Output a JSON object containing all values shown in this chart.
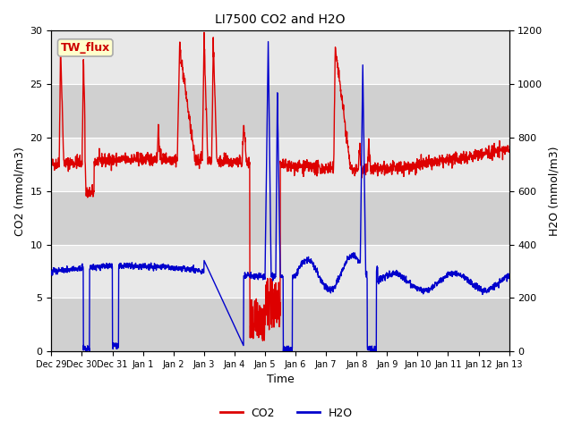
{
  "title": "LI7500 CO2 and H2O",
  "xlabel": "Time",
  "ylabel_left": "CO2 (mmol/m3)",
  "ylabel_right": "H2O (mmol/m3)",
  "annotation_text": "TW_flux",
  "annotation_bg": "#ffffcc",
  "annotation_border": "#aaaaaa",
  "annotation_text_color": "#cc0000",
  "ylim_left": [
    0,
    30
  ],
  "ylim_right": [
    0,
    1200
  ],
  "fig_bg_color": "#ffffff",
  "plot_bg_color": "#e0e0e0",
  "band_light": "#e8e8e8",
  "band_dark": "#d0d0d0",
  "co2_color": "#dd0000",
  "h2o_color": "#0000cc",
  "legend_co2": "CO2",
  "legend_h2o": "H2O",
  "x_tick_labels": [
    "Dec 29",
    "Dec 30",
    "Dec 31",
    "Jan 1",
    "Jan 2",
    "Jan 3",
    "Jan 4",
    "Jan 5",
    "Jan 6",
    "Jan 7",
    "Jan 8",
    "Jan 9",
    "Jan 10",
    "Jan 11",
    "Jan 12",
    "Jan 13"
  ],
  "x_tick_positions": [
    0,
    1,
    2,
    3,
    4,
    5,
    6,
    7,
    8,
    9,
    10,
    11,
    12,
    13,
    14,
    15
  ],
  "yticks_left": [
    0,
    5,
    10,
    15,
    20,
    25,
    30
  ],
  "yticks_right": [
    0,
    200,
    400,
    600,
    800,
    1000,
    1200
  ],
  "figsize": [
    6.4,
    4.8
  ],
  "dpi": 100
}
